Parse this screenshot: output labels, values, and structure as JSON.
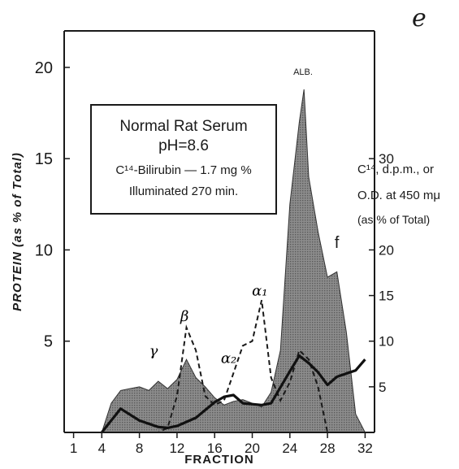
{
  "panel_letter": "e",
  "chart_data": {
    "type": "area",
    "xlabel": "FRACTION",
    "ylabel": "PROTEIN (as % of Total)",
    "ylabel_right": [
      "C¹⁴, d.p.m., or",
      "O.D. at 450 mμ",
      "(as % of Total)"
    ],
    "xlim": [
      0,
      33
    ],
    "ylim": [
      0,
      22
    ],
    "ylim_right": [
      0,
      44
    ],
    "x_ticks": [
      "1",
      "4",
      "8",
      "12",
      "16",
      "20",
      "24",
      "28",
      "32"
    ],
    "y_ticks": [
      "5",
      "10",
      "15",
      "20"
    ],
    "y_ticks_right": [
      "5",
      "10",
      "15",
      "20",
      "30"
    ],
    "grid": false,
    "legend_box": {
      "lines": [
        "Normal Rat Serum",
        "pH=8.6",
        "C¹⁴-Bilirubin — 1.7 mg %",
        "Illuminated 270 min."
      ]
    },
    "annotations": [
      {
        "text": "ALB.",
        "x": 25.4,
        "y": 19.6
      },
      {
        "text": "f",
        "x": 29,
        "y": 10.1
      },
      {
        "text": "γ",
        "x": 9.5,
        "y": 4.2
      },
      {
        "text": "β",
        "x": 12.8,
        "y": 6.1
      },
      {
        "text": "α₂",
        "x": 17.5,
        "y": 3.8
      },
      {
        "text": "α₁",
        "x": 20.8,
        "y": 7.5
      }
    ],
    "series": [
      {
        "name": "PROTEIN",
        "style": "shaded-area",
        "axis": "left",
        "x": [
          4,
          5,
          6,
          7,
          8,
          9,
          10,
          11,
          12,
          13,
          14,
          15,
          16,
          17,
          18,
          19,
          20,
          21,
          22,
          23,
          24,
          25,
          25.5,
          26,
          27,
          28,
          29,
          30,
          31,
          32
        ],
        "y": [
          0,
          1.6,
          2.3,
          2.4,
          2.5,
          2.3,
          2.8,
          2.4,
          2.9,
          4.0,
          3.0,
          2.5,
          1.9,
          1.5,
          1.7,
          1.8,
          1.6,
          1.4,
          2.2,
          4.5,
          12.5,
          17.0,
          18.8,
          14.0,
          11.0,
          8.5,
          8.8,
          5.5,
          1.0,
          0
        ]
      },
      {
        "name": "O.D. at 450 mμ",
        "style": "dashed",
        "axis": "right",
        "x": [
          1,
          10,
          11,
          12,
          13,
          14,
          15,
          16,
          17,
          18,
          19,
          20,
          21,
          22,
          23,
          24,
          25,
          26,
          27,
          28
        ],
        "y": [
          0,
          0,
          0.5,
          4,
          11.5,
          9,
          4,
          3,
          3.5,
          6.5,
          9.5,
          10,
          14.5,
          6,
          3.5,
          5.5,
          9,
          8,
          5,
          0
        ]
      },
      {
        "name": "C¹⁴, d.p.m.",
        "style": "solid-bold",
        "axis": "right",
        "x": [
          4,
          6,
          8,
          10,
          11,
          12,
          14,
          16,
          17,
          18,
          19,
          20,
          21,
          22,
          24,
          25,
          26,
          27,
          28,
          29,
          31,
          32
        ],
        "y": [
          0,
          2.6,
          1.3,
          0.6,
          0.5,
          0.7,
          1.6,
          3.3,
          3.9,
          4.1,
          3.2,
          3.1,
          3.0,
          3.2,
          6.7,
          8.4,
          7.6,
          6.6,
          5.2,
          6.1,
          6.8,
          8.0
        ]
      }
    ]
  }
}
